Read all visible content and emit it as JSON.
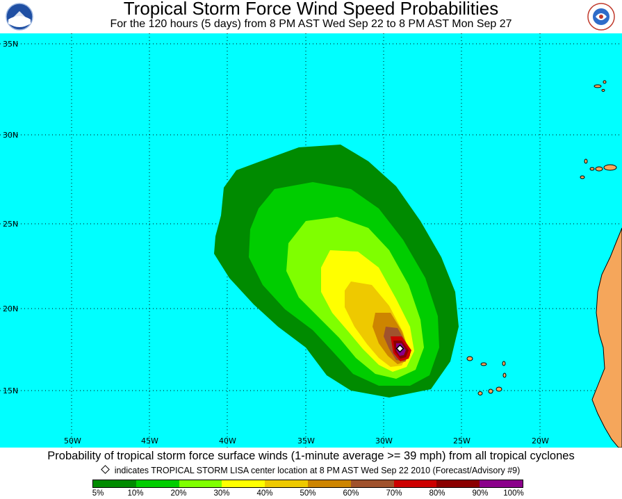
{
  "header": {
    "title": "Tropical Storm Force Wind Speed Probabilities",
    "subtitle": "For the 120 hours (5 days) from 8 PM AST Wed Sep 22 to 8 PM AST Mon Sep 27",
    "logo_left": "NOAA",
    "logo_right": "NATIONAL WEATHER SERVICE"
  },
  "map": {
    "background_color": "#00ffff",
    "land_color": "#f5a65b",
    "lat_labels": [
      "35N",
      "30N",
      "25N",
      "20N",
      "15N"
    ],
    "lon_labels": [
      "50W",
      "45W",
      "40W",
      "35W",
      "30W",
      "25W",
      "20W"
    ],
    "storm_center": {
      "name": "TROPICAL STORM LISA",
      "lat": 17.5,
      "lon": 29.0
    }
  },
  "footer": {
    "caption": "Probability of tropical storm force surface winds (1-minute average >= 39 mph) from all tropical cyclones",
    "center_note": "indicates TROPICAL STORM LISA center location at 8 PM AST Wed Sep 22 2010 (Forecast/Advisory #9)"
  },
  "legend": {
    "colors": [
      "#008b00",
      "#00cd00",
      "#7fff00",
      "#ffff00",
      "#eec900",
      "#cd8500",
      "#a0522d",
      "#cd0000",
      "#8b0000",
      "#8b008b"
    ],
    "labels": [
      "5%",
      "10%",
      "20%",
      "30%",
      "40%",
      "50%",
      "60%",
      "70%",
      "80%",
      "90%",
      "100%"
    ]
  }
}
